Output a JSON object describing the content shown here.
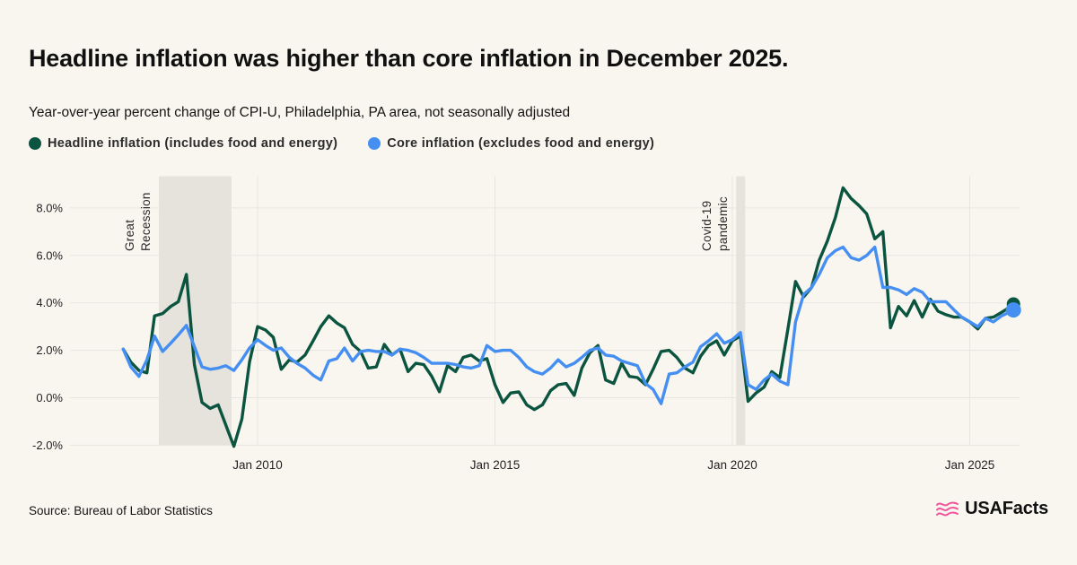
{
  "header": {
    "title": "Headline inflation was higher than core inflation in December 2025.",
    "subtitle": "Year-over-year percent change of CPI-U, Philadelphia, PA area, not seasonally adjusted"
  },
  "legend": [
    {
      "label": "Headline inflation (includes food and energy)",
      "color": "#0B5540"
    },
    {
      "label": "Core inflation (excludes food and energy)",
      "color": "#468FF2"
    }
  ],
  "footer": {
    "source": "Source: Bureau of Labor Statistics",
    "brand": "USAFacts"
  },
  "colors": {
    "background": "#F9F6F0",
    "band": "#E6E3DC",
    "grid": "#E8E5DE",
    "tick_text": "#1F1F1F",
    "band_label_text": "#2A2A2A",
    "headline": "#0B5540",
    "core": "#468FF2",
    "brand_pink": "#F0529C"
  },
  "chart_data": {
    "type": "line",
    "title": "Headline inflation was higher than core inflation in December 2025.",
    "subtitle": "Year-over-year percent change of CPI-U, Philadelphia, PA area, not seasonally adjusted",
    "xlabel": "",
    "ylabel": "",
    "unit": "percent",
    "grid": true,
    "legend_position": "top-left",
    "end_point_markers": true,
    "ylim": [
      -2.0,
      9.3
    ],
    "xlim": [
      2006.9,
      2026.1
    ],
    "y_ticks": [
      {
        "value": 8,
        "label": "8.0%"
      },
      {
        "value": 6,
        "label": "6.0%"
      },
      {
        "value": 4,
        "label": "4.0%"
      },
      {
        "value": 2,
        "label": "2.0%"
      },
      {
        "value": 0,
        "label": "0.0%"
      },
      {
        "value": -2,
        "label": "-2.0%"
      }
    ],
    "x_ticks": [
      {
        "year": 2010,
        "label": "Jan 2010"
      },
      {
        "year": 2015,
        "label": "Jan 2015"
      },
      {
        "year": 2020,
        "label": "Jan 2020"
      },
      {
        "year": 2025,
        "label": "Jan 2025"
      }
    ],
    "bands": [
      {
        "label_lines": [
          "Great",
          "Recession"
        ],
        "from_year": 2007.92,
        "to_year": 2009.45
      },
      {
        "label_lines": [
          "Covid-19",
          "pandemic"
        ],
        "from_year": 2020.08,
        "to_year": 2020.27
      }
    ],
    "x": [
      2007.17,
      2007.33,
      2007.5,
      2007.67,
      2007.83,
      2008,
      2008.17,
      2008.33,
      2008.5,
      2008.67,
      2008.83,
      2009,
      2009.17,
      2009.33,
      2009.5,
      2009.67,
      2009.83,
      2010,
      2010.17,
      2010.33,
      2010.5,
      2010.67,
      2010.83,
      2011,
      2011.17,
      2011.33,
      2011.5,
      2011.67,
      2011.83,
      2012,
      2012.17,
      2012.33,
      2012.5,
      2012.67,
      2012.83,
      2013,
      2013.17,
      2013.33,
      2013.5,
      2013.67,
      2013.83,
      2014,
      2014.17,
      2014.33,
      2014.5,
      2014.67,
      2014.83,
      2015,
      2015.17,
      2015.33,
      2015.5,
      2015.67,
      2015.83,
      2016,
      2016.17,
      2016.33,
      2016.5,
      2016.67,
      2016.83,
      2017,
      2017.17,
      2017.33,
      2017.5,
      2017.67,
      2017.83,
      2018,
      2018.17,
      2018.33,
      2018.5,
      2018.67,
      2018.83,
      2019,
      2019.17,
      2019.33,
      2019.5,
      2019.67,
      2019.83,
      2020,
      2020.17,
      2020.33,
      2020.5,
      2020.67,
      2020.83,
      2021,
      2021.17,
      2021.33,
      2021.5,
      2021.67,
      2021.83,
      2022,
      2022.17,
      2022.33,
      2022.5,
      2022.67,
      2022.83,
      2023,
      2023.17,
      2023.33,
      2023.5,
      2023.67,
      2023.83,
      2024,
      2024.17,
      2024.33,
      2024.5,
      2024.67,
      2024.83,
      2025,
      2025.17,
      2025.33,
      2025.5,
      2025.67,
      2025.83,
      2025.92
    ],
    "series": [
      {
        "name": "Headline inflation (includes food and energy)",
        "color": "#0B5540",
        "values": [
          2.05,
          1.5,
          1.15,
          1.05,
          3.45,
          3.55,
          3.85,
          4.05,
          5.2,
          1.4,
          -0.2,
          -0.45,
          -0.3,
          -1.15,
          -2.05,
          -0.9,
          1.5,
          3.0,
          2.85,
          2.55,
          1.2,
          1.6,
          1.5,
          1.8,
          2.4,
          3.0,
          3.45,
          3.15,
          2.95,
          2.25,
          1.95,
          1.25,
          1.3,
          2.25,
          1.8,
          2.05,
          1.1,
          1.45,
          1.4,
          0.9,
          0.25,
          1.35,
          1.1,
          1.7,
          1.8,
          1.55,
          1.65,
          0.55,
          -0.2,
          0.2,
          0.25,
          -0.3,
          -0.5,
          -0.3,
          0.3,
          0.55,
          0.6,
          0.1,
          1.25,
          1.9,
          2.2,
          0.75,
          0.6,
          1.45,
          0.9,
          0.85,
          0.55,
          1.2,
          1.95,
          2.0,
          1.7,
          1.25,
          1.05,
          1.75,
          2.2,
          2.4,
          1.8,
          2.4,
          2.6,
          -0.15,
          0.2,
          0.45,
          1.1,
          0.85,
          2.9,
          4.9,
          4.25,
          4.65,
          5.8,
          6.6,
          7.6,
          8.85,
          8.4,
          8.1,
          7.75,
          6.7,
          7.0,
          2.95,
          3.85,
          3.45,
          4.1,
          3.4,
          4.15,
          3.65,
          3.5,
          3.4,
          3.4,
          3.2,
          2.9,
          3.35,
          3.4,
          3.6,
          3.8,
          3.95
        ]
      },
      {
        "name": "Core inflation (excludes food and energy)",
        "color": "#468FF2",
        "values": [
          2.05,
          1.3,
          0.9,
          1.6,
          2.6,
          1.95,
          2.3,
          2.65,
          3.05,
          2.15,
          1.3,
          1.2,
          1.25,
          1.35,
          1.15,
          1.6,
          2.1,
          2.45,
          2.2,
          2.0,
          2.1,
          1.7,
          1.45,
          1.25,
          0.95,
          0.75,
          1.55,
          1.65,
          2.1,
          1.55,
          1.95,
          2.0,
          1.95,
          1.95,
          1.8,
          2.05,
          2.0,
          1.9,
          1.7,
          1.45,
          1.45,
          1.45,
          1.4,
          1.3,
          1.25,
          1.35,
          2.2,
          1.95,
          2.0,
          2.0,
          1.7,
          1.3,
          1.1,
          1.0,
          1.25,
          1.6,
          1.3,
          1.45,
          1.7,
          2.0,
          2.1,
          1.8,
          1.75,
          1.55,
          1.45,
          1.35,
          0.6,
          0.35,
          -0.25,
          1.0,
          1.05,
          1.3,
          1.5,
          2.15,
          2.4,
          2.7,
          2.3,
          2.45,
          2.75,
          0.55,
          0.35,
          0.75,
          1.0,
          0.7,
          0.55,
          3.2,
          4.35,
          4.65,
          5.2,
          5.9,
          6.2,
          6.35,
          5.9,
          5.8,
          6.0,
          6.35,
          4.65,
          4.65,
          4.55,
          4.35,
          4.6,
          4.45,
          4.05,
          4.05,
          4.05,
          3.7,
          3.4,
          3.2,
          3.0,
          3.35,
          3.2,
          3.45,
          3.6,
          3.7
        ]
      }
    ]
  }
}
